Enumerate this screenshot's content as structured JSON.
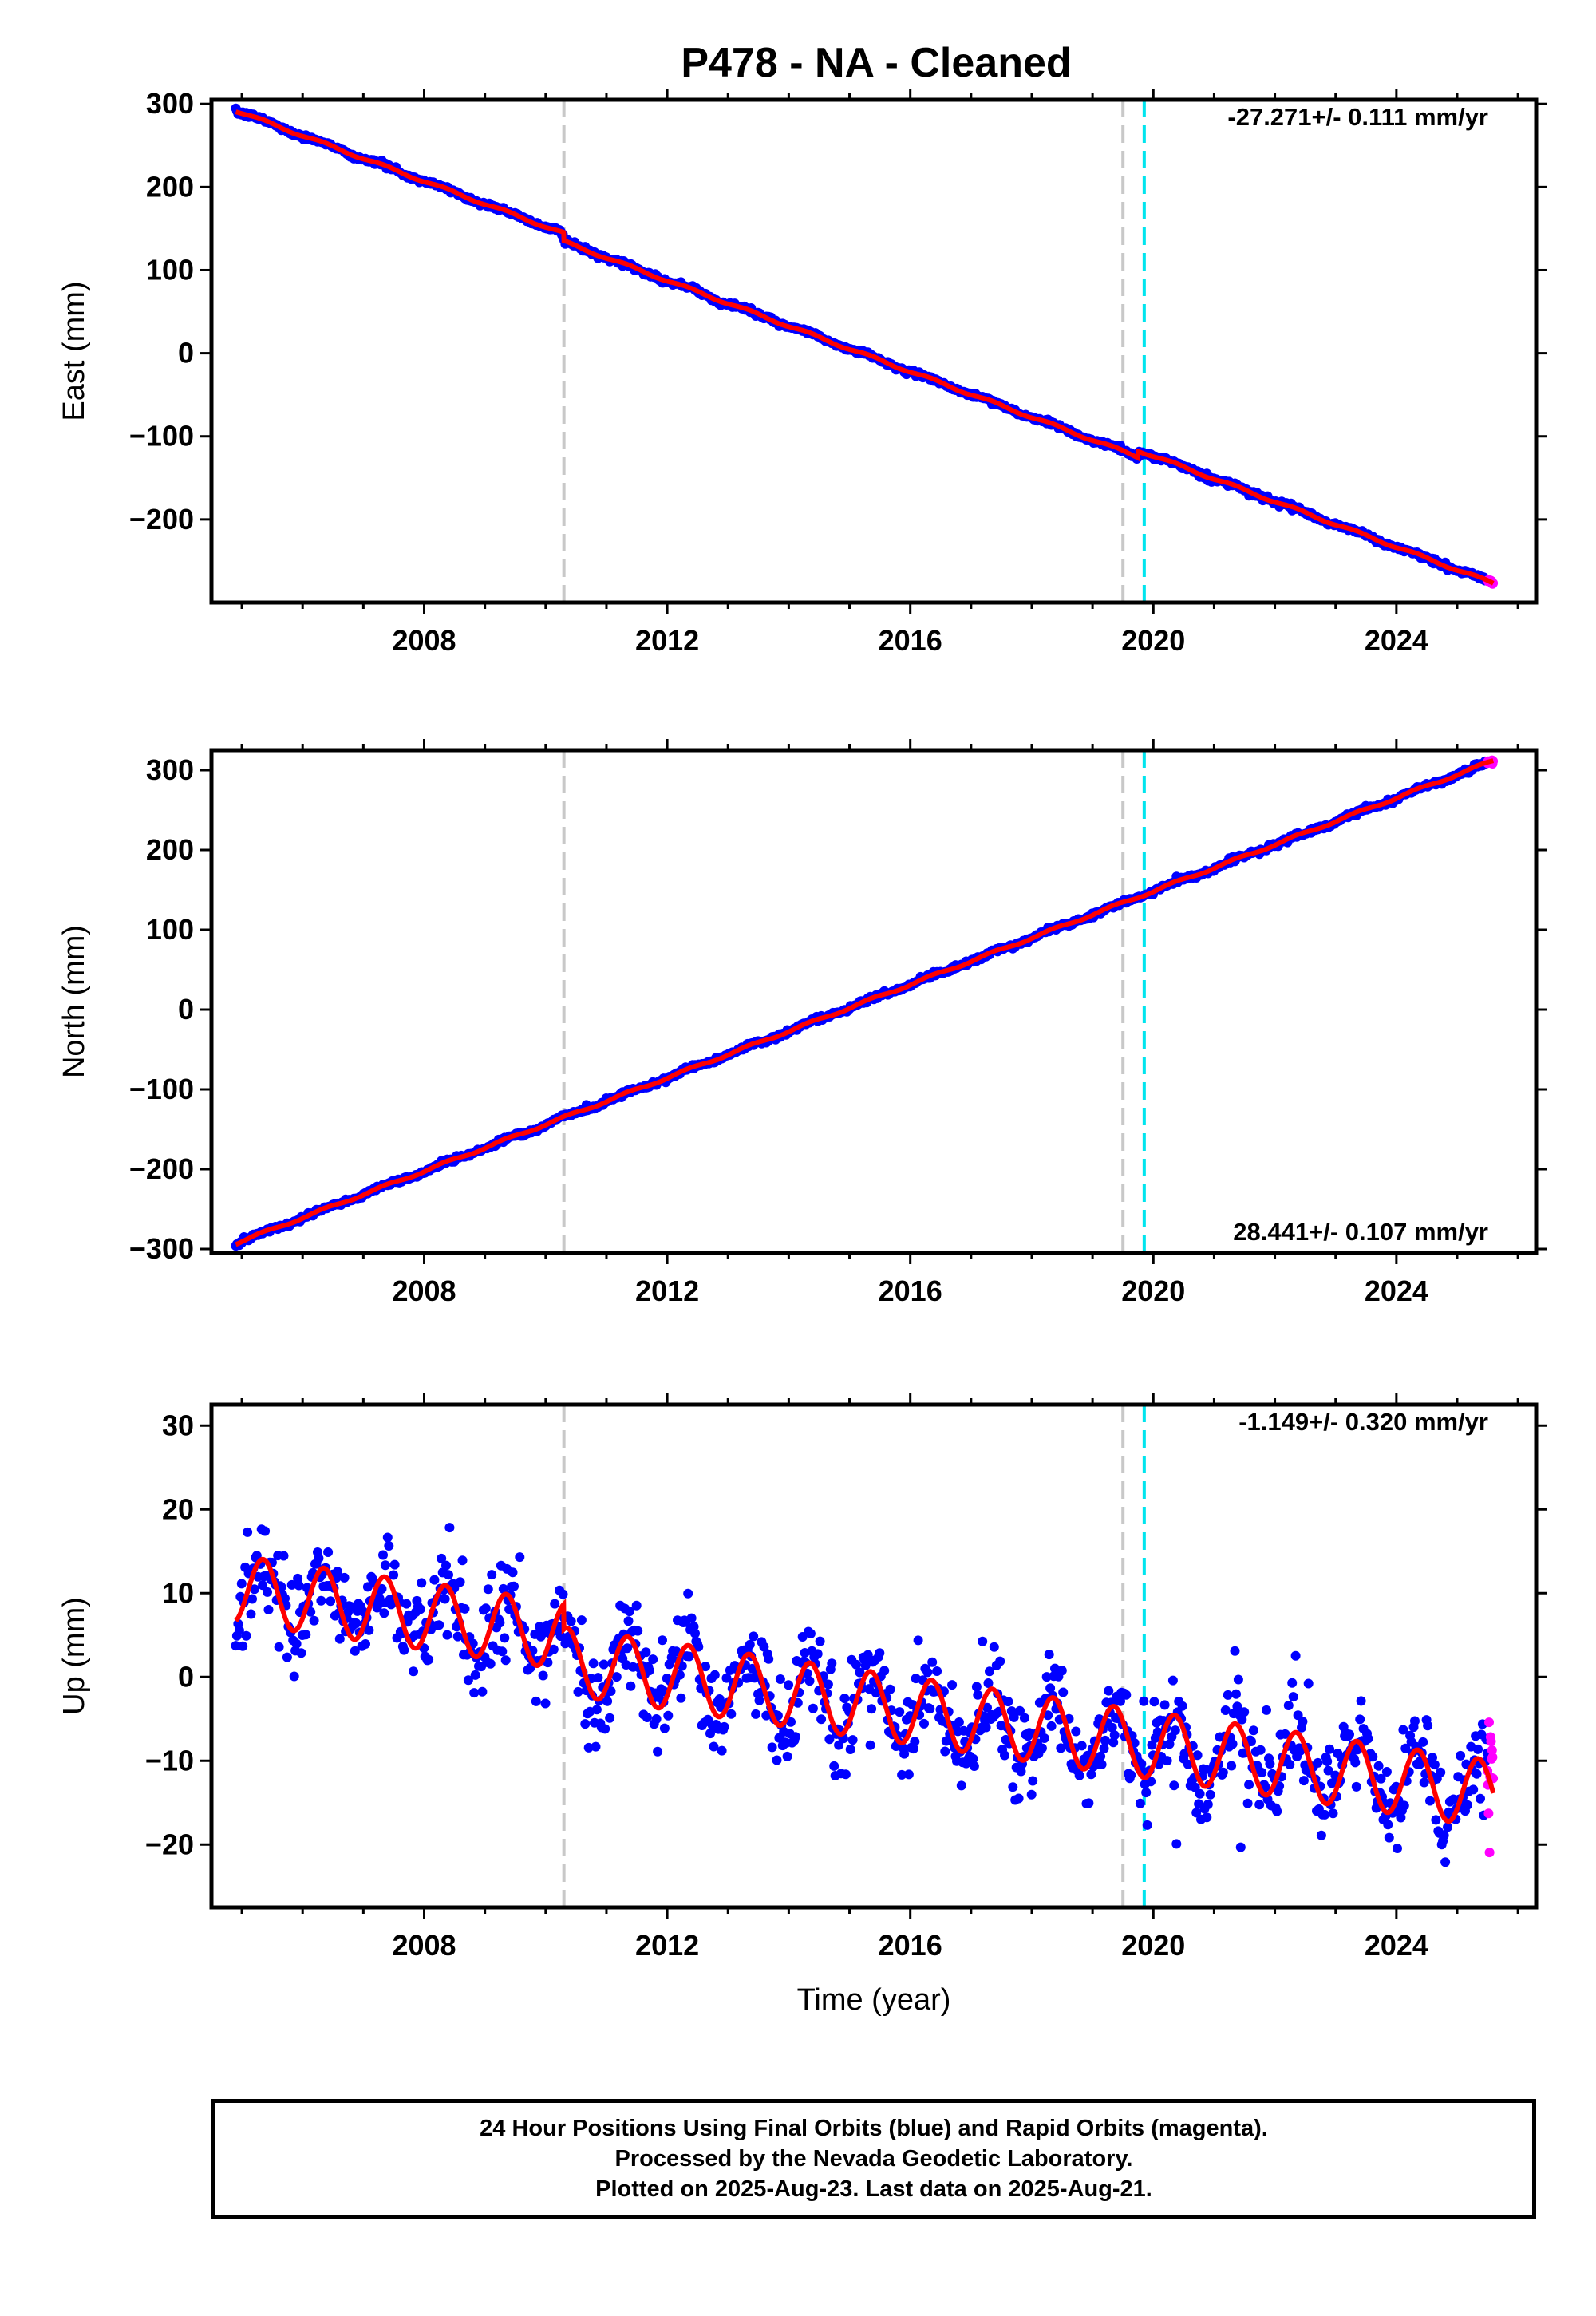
{
  "title": "P478  - NA - Cleaned",
  "xlabel": "Time (year)",
  "caption": {
    "lines": [
      "24 Hour Positions Using Final Orbits (blue) and Rapid Orbits (magenta).",
      "Processed by the Nevada Geodetic Laboratory.",
      "Plotted on 2025-Aug-23. Last data on 2025-Aug-21."
    ]
  },
  "colors": {
    "final_orbits": "#0000ff",
    "rapid_orbits": "#ff00ff",
    "model": "#ff0000",
    "equipment_change": "#c8c8c8",
    "earthquake": "#00e5ee"
  },
  "chart_data": [
    {
      "type": "scatter",
      "component": "east",
      "ylabel": "East (mm)",
      "xlim": [
        2004.5,
        2026.3
      ],
      "ylim": [
        -300,
        305
      ],
      "xticks": [
        2008,
        2012,
        2016,
        2020,
        2024
      ],
      "yticks": [
        -200,
        -100,
        0,
        100,
        200,
        300
      ],
      "rate": "-27.271+/- 0.111 mm/yr",
      "rate_position": "top-right",
      "start": [
        2004.9,
        292
      ],
      "end": [
        2025.6,
        -277
      ],
      "offsets": [
        {
          "x": 2010.3,
          "value": -10
        },
        {
          "x": 2019.75,
          "value": 8
        }
      ],
      "seasonal_amplitude": 1.5,
      "noise_sd": 1.5,
      "equipment_change_epochs": [
        2010.3,
        2019.5
      ],
      "earthquake_epochs": [
        2019.85
      ],
      "rapid_start": 2025.5
    },
    {
      "type": "scatter",
      "component": "north",
      "ylabel": "North (mm)",
      "xlim": [
        2004.5,
        2026.3
      ],
      "ylim": [
        -305,
        325
      ],
      "xticks": [
        2008,
        2012,
        2016,
        2020,
        2024
      ],
      "yticks": [
        -300,
        -200,
        -100,
        0,
        100,
        200,
        300
      ],
      "rate": "28.441+/- 0.107 mm/yr",
      "rate_position": "bottom-right",
      "start": [
        2004.9,
        -293
      ],
      "end": [
        2025.6,
        312
      ],
      "offsets": [],
      "seasonal_amplitude": 1.5,
      "noise_sd": 1.5,
      "equipment_change_epochs": [
        2010.3,
        2019.5
      ],
      "earthquake_epochs": [
        2019.85
      ],
      "rapid_start": 2025.5
    },
    {
      "type": "scatter",
      "component": "up",
      "ylabel": "Up (mm)",
      "xlim": [
        2004.5,
        2026.3
      ],
      "ylim": [
        -27.5,
        32.5
      ],
      "xticks": [
        2008,
        2012,
        2016,
        2020,
        2024
      ],
      "yticks": [
        -20,
        -10,
        0,
        10,
        20,
        30
      ],
      "rate": "-1.149+/- 0.320 mm/yr",
      "rate_position": "top-right",
      "start": [
        2004.9,
        10.5
      ],
      "end": [
        2025.6,
        -14
      ],
      "offsets": [
        {
          "x": 2010.3,
          "value": -3
        }
      ],
      "seasonal_amplitude": 4,
      "noise_sd": 2.8,
      "equipment_change_epochs": [
        2010.3,
        2019.5
      ],
      "earthquake_epochs": [
        2019.85
      ],
      "rapid_start": 2025.5
    }
  ]
}
